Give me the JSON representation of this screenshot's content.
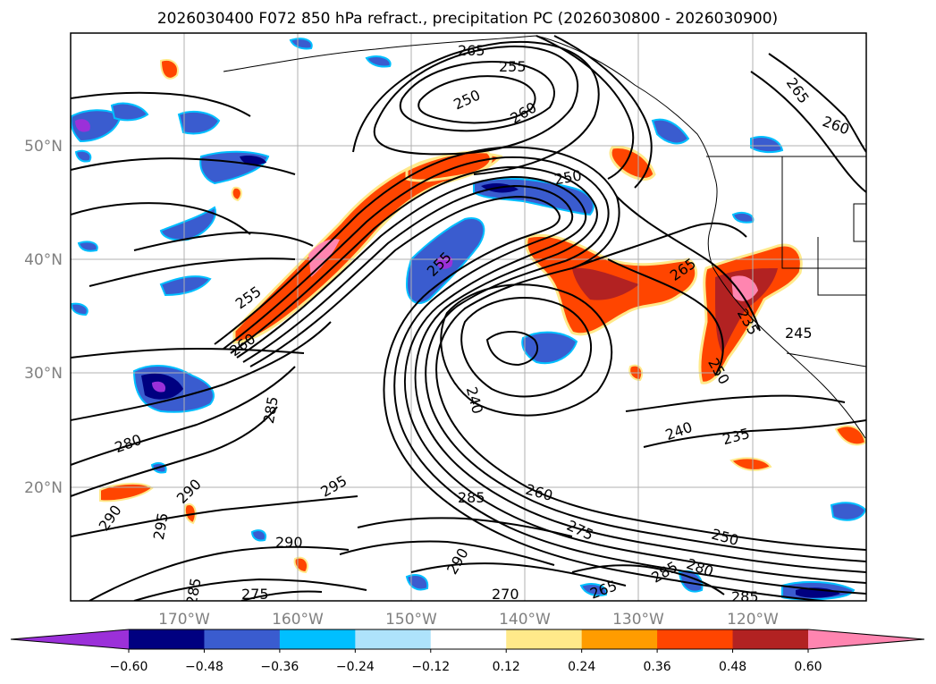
{
  "title": "2026030400 F072 850 hPa refract., precipitation PC (2026030800 - 2026030900)",
  "map": {
    "lon_ticks": [
      "170°W",
      "160°W",
      "150°W",
      "140°W",
      "130°W",
      "120°W"
    ],
    "lat_ticks": [
      "50°N",
      "40°N",
      "30°N",
      "20°N"
    ],
    "contour_labels": [
      "265",
      "255",
      "250",
      "260",
      "265",
      "260",
      "250",
      "255",
      "265",
      "255",
      "260",
      "285",
      "280",
      "290",
      "295",
      "290",
      "285",
      "275",
      "290",
      "290",
      "270",
      "265",
      "285",
      "285",
      "260",
      "275",
      "250",
      "280",
      "285",
      "240",
      "240",
      "235",
      "245",
      "250",
      "235",
      "295"
    ]
  },
  "colorbar": {
    "ticks": [
      "−0.60",
      "−0.48",
      "−0.36",
      "−0.24",
      "−0.12",
      "0.12",
      "0.24",
      "0.36",
      "0.48",
      "0.60"
    ],
    "colors": [
      "#9b30d9",
      "#000080",
      "#3a5ccf",
      "#00bfff",
      "#aee3fb",
      "#ffffff",
      "#ffe98a",
      "#ff9c00",
      "#ff4500",
      "#b22222",
      "#ff85b0"
    ]
  },
  "fill_colors": {
    "purple": "#9b30d9",
    "navy": "#000080",
    "blue": "#3a5ccf",
    "cyan": "#00bfff",
    "lightblue": "#aee3fb",
    "yellow": "#ffe98a",
    "orange": "#ff9c00",
    "redorange": "#ff4500",
    "firebrick": "#b22222",
    "pink": "#ff85b0"
  }
}
